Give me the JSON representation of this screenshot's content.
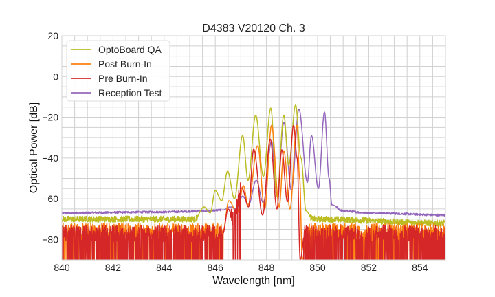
{
  "chart_data": {
    "type": "line",
    "title": "D4383 V20120 Ch. 3",
    "xlabel": "Wavelength [nm]",
    "ylabel": "Optical Power [dB]",
    "xlim": [
      840,
      855
    ],
    "ylim": [
      -90,
      20
    ],
    "xticks": [
      840,
      842,
      844,
      846,
      848,
      850,
      852,
      854
    ],
    "xtick_labels": [
      "840",
      "842",
      "844",
      "846",
      "848",
      "850",
      "852",
      "854"
    ],
    "yticks": [
      -80,
      -60,
      -40,
      -20,
      0,
      20
    ],
    "ytick_labels": [
      "−80",
      "−60",
      "−40",
      "−20",
      "0",
      "20"
    ],
    "minor_grid": {
      "x_step": 0.5,
      "y_step": 5
    },
    "grid": true,
    "legend_position": "top-left",
    "series": [
      {
        "name": "OptoBoard QA",
        "color": "#bcbd22",
        "points": [
          [
            840,
            -70
          ],
          [
            845.2,
            -70
          ],
          [
            845.56,
            -64
          ],
          [
            845.8,
            -67
          ],
          [
            846.0,
            -56
          ],
          [
            846.25,
            -61
          ],
          [
            846.48,
            -46.5
          ],
          [
            846.75,
            -60
          ],
          [
            847.07,
            -29
          ],
          [
            847.28,
            -51
          ],
          [
            847.58,
            -19
          ],
          [
            847.88,
            -49
          ],
          [
            848.17,
            -15.5
          ],
          [
            848.41,
            -59
          ],
          [
            848.68,
            -19
          ],
          [
            848.87,
            -43.5
          ],
          [
            849.14,
            -14
          ],
          [
            849.35,
            -40
          ],
          [
            849.55,
            -66
          ],
          [
            849.8,
            -70
          ],
          [
            855,
            -72
          ]
        ],
        "noise": [
          [
            840,
            845.3,
            1.5,
            0
          ],
          [
            849.7,
            855,
            1.5,
            0
          ]
        ]
      },
      {
        "name": "Post Burn-In",
        "color": "#ff7f0e",
        "points": [
          [
            840,
            -76
          ],
          [
            846.3,
            -76
          ],
          [
            846.53,
            -61
          ],
          [
            846.86,
            -67
          ],
          [
            847.1,
            -53.6
          ],
          [
            847.28,
            -63
          ],
          [
            847.66,
            -34
          ],
          [
            847.93,
            -65
          ],
          [
            848.2,
            -24
          ],
          [
            848.5,
            -64
          ],
          [
            848.68,
            -36.5
          ],
          [
            848.92,
            -65
          ],
          [
            849.19,
            -24
          ],
          [
            849.3,
            -50
          ],
          [
            849.4,
            -90
          ],
          [
            849.6,
            -76
          ],
          [
            855,
            -76
          ]
        ],
        "noise": [
          [
            840,
            846.3,
            4,
            0.25
          ],
          [
            849.5,
            855,
            4,
            0.25
          ]
        ]
      },
      {
        "name": "Pre Burn-In",
        "color": "#d62728",
        "points": [
          [
            840,
            -77
          ],
          [
            846.3,
            -77
          ],
          [
            846.5,
            -65
          ],
          [
            846.7,
            -70
          ],
          [
            847.04,
            -54.7
          ],
          [
            847.3,
            -64
          ],
          [
            847.5,
            -35.7
          ],
          [
            847.85,
            -68
          ],
          [
            848.15,
            -30.7
          ],
          [
            848.41,
            -65
          ],
          [
            848.6,
            -36
          ],
          [
            848.82,
            -61.5
          ],
          [
            849.06,
            -24
          ],
          [
            849.2,
            -40
          ],
          [
            849.32,
            -90
          ],
          [
            849.5,
            -77
          ],
          [
            855,
            -77
          ]
        ],
        "noise": [
          [
            840,
            846.3,
            4,
            0.35
          ],
          [
            846.6,
            847.0,
            4,
            0.3
          ],
          [
            849.45,
            855,
            4,
            0.35
          ]
        ]
      },
      {
        "name": "Reception Test",
        "color": "#9467bd",
        "points": [
          [
            840,
            -67
          ],
          [
            844,
            -66.5
          ],
          [
            845.8,
            -66
          ],
          [
            846.3,
            -65.5
          ],
          [
            846.58,
            -64
          ],
          [
            846.82,
            -65
          ],
          [
            847.07,
            -58.7
          ],
          [
            847.3,
            -63
          ],
          [
            847.6,
            -51
          ],
          [
            847.88,
            -62
          ],
          [
            848.2,
            -31.7
          ],
          [
            848.41,
            -59
          ],
          [
            848.68,
            -22.6
          ],
          [
            848.98,
            -56
          ],
          [
            849.27,
            -16
          ],
          [
            849.6,
            -52
          ],
          [
            849.76,
            -29
          ],
          [
            850.03,
            -55
          ],
          [
            850.27,
            -17.5
          ],
          [
            850.45,
            -50
          ],
          [
            850.56,
            -63
          ],
          [
            851,
            -66
          ],
          [
            852,
            -67
          ],
          [
            855,
            -68
          ]
        ],
        "noise": [
          [
            840,
            846.2,
            0.5,
            0
          ],
          [
            850.7,
            855,
            0.5,
            0
          ]
        ]
      }
    ]
  }
}
